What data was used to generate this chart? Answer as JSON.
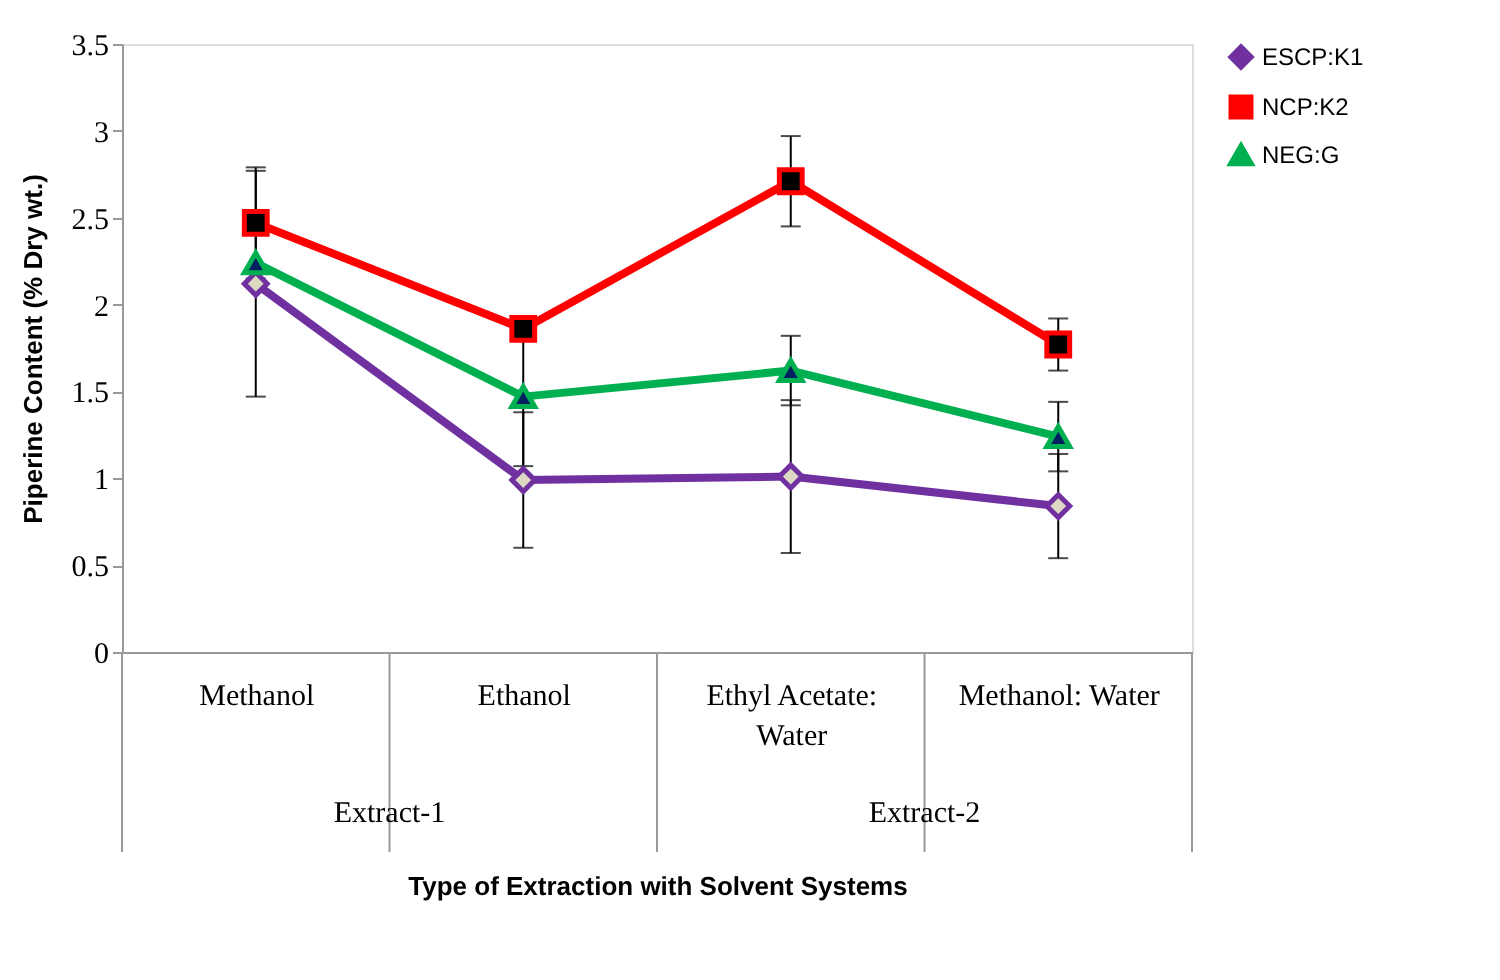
{
  "chart_data": {
    "type": "line",
    "xlabel": "Type of Extraction with Solvent Systems",
    "ylabel": "Piperine Content (% Dry wt.)",
    "categories": [
      "Methanol",
      "Ethanol",
      "Ethyl Acetate:\nWater",
      "Methanol: Water"
    ],
    "annotations": [
      "Extract-1",
      "Extract-2"
    ],
    "series": [
      {
        "name": "ESCP:K1",
        "color": "#7030a0",
        "marker": "diamond",
        "values": [
          2.12,
          0.99,
          1.01,
          0.84
        ],
        "errors": [
          0.65,
          0.39,
          0.44,
          0.3
        ]
      },
      {
        "name": "NCP:K2",
        "color": "#ff0000",
        "marker": "square",
        "values": [
          2.47,
          1.86,
          2.71,
          1.77
        ],
        "errors": [
          0.32,
          null,
          0.26,
          0.15
        ]
      },
      {
        "name": "NEG:G",
        "color": "#00b050",
        "marker": "triangle",
        "values": [
          2.24,
          1.47,
          1.62,
          1.24
        ],
        "errors": [
          null,
          0.4,
          0.2,
          0.2
        ]
      }
    ],
    "ylim": [
      0,
      3.5
    ],
    "yticks": [
      0,
      0.5,
      1,
      1.5,
      2,
      2.5,
      3,
      3.5
    ],
    "grid": false,
    "legend": "right",
    "line_style": "solid"
  }
}
